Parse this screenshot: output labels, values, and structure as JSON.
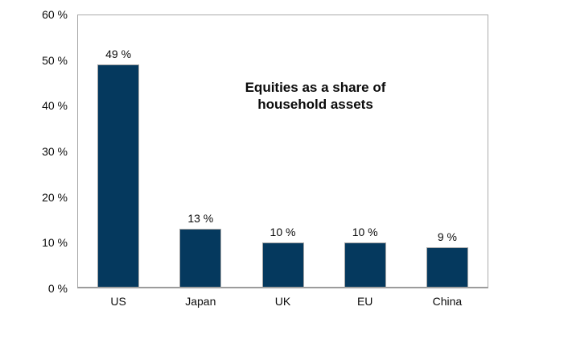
{
  "chart_data": {
    "type": "bar",
    "title": "Equities as a share of\nhousehold assets",
    "categories": [
      "US",
      "Japan",
      "UK",
      "EU",
      "China"
    ],
    "values": [
      49,
      13,
      10,
      10,
      9
    ],
    "data_labels": [
      "49 %",
      "13 %",
      "10 %",
      "10 %",
      "9 %"
    ],
    "xlabel": "",
    "ylabel": "",
    "ylim": [
      0,
      60
    ],
    "y_ticks": [
      60,
      50,
      40,
      30,
      20,
      10,
      0
    ],
    "y_tick_labels": [
      "60 %",
      "50 %",
      "40 %",
      "30 %",
      "20 %",
      "10 %",
      "0 %"
    ],
    "grid": false,
    "legend": "none",
    "colors": {
      "bar_fill": "#05395E",
      "bar_border": "#A6A6A6",
      "plot_border": "#ABABAB",
      "axis_line": "#9C9C9C",
      "text": "#0B0B0B",
      "background": "#FFFFFF"
    }
  }
}
